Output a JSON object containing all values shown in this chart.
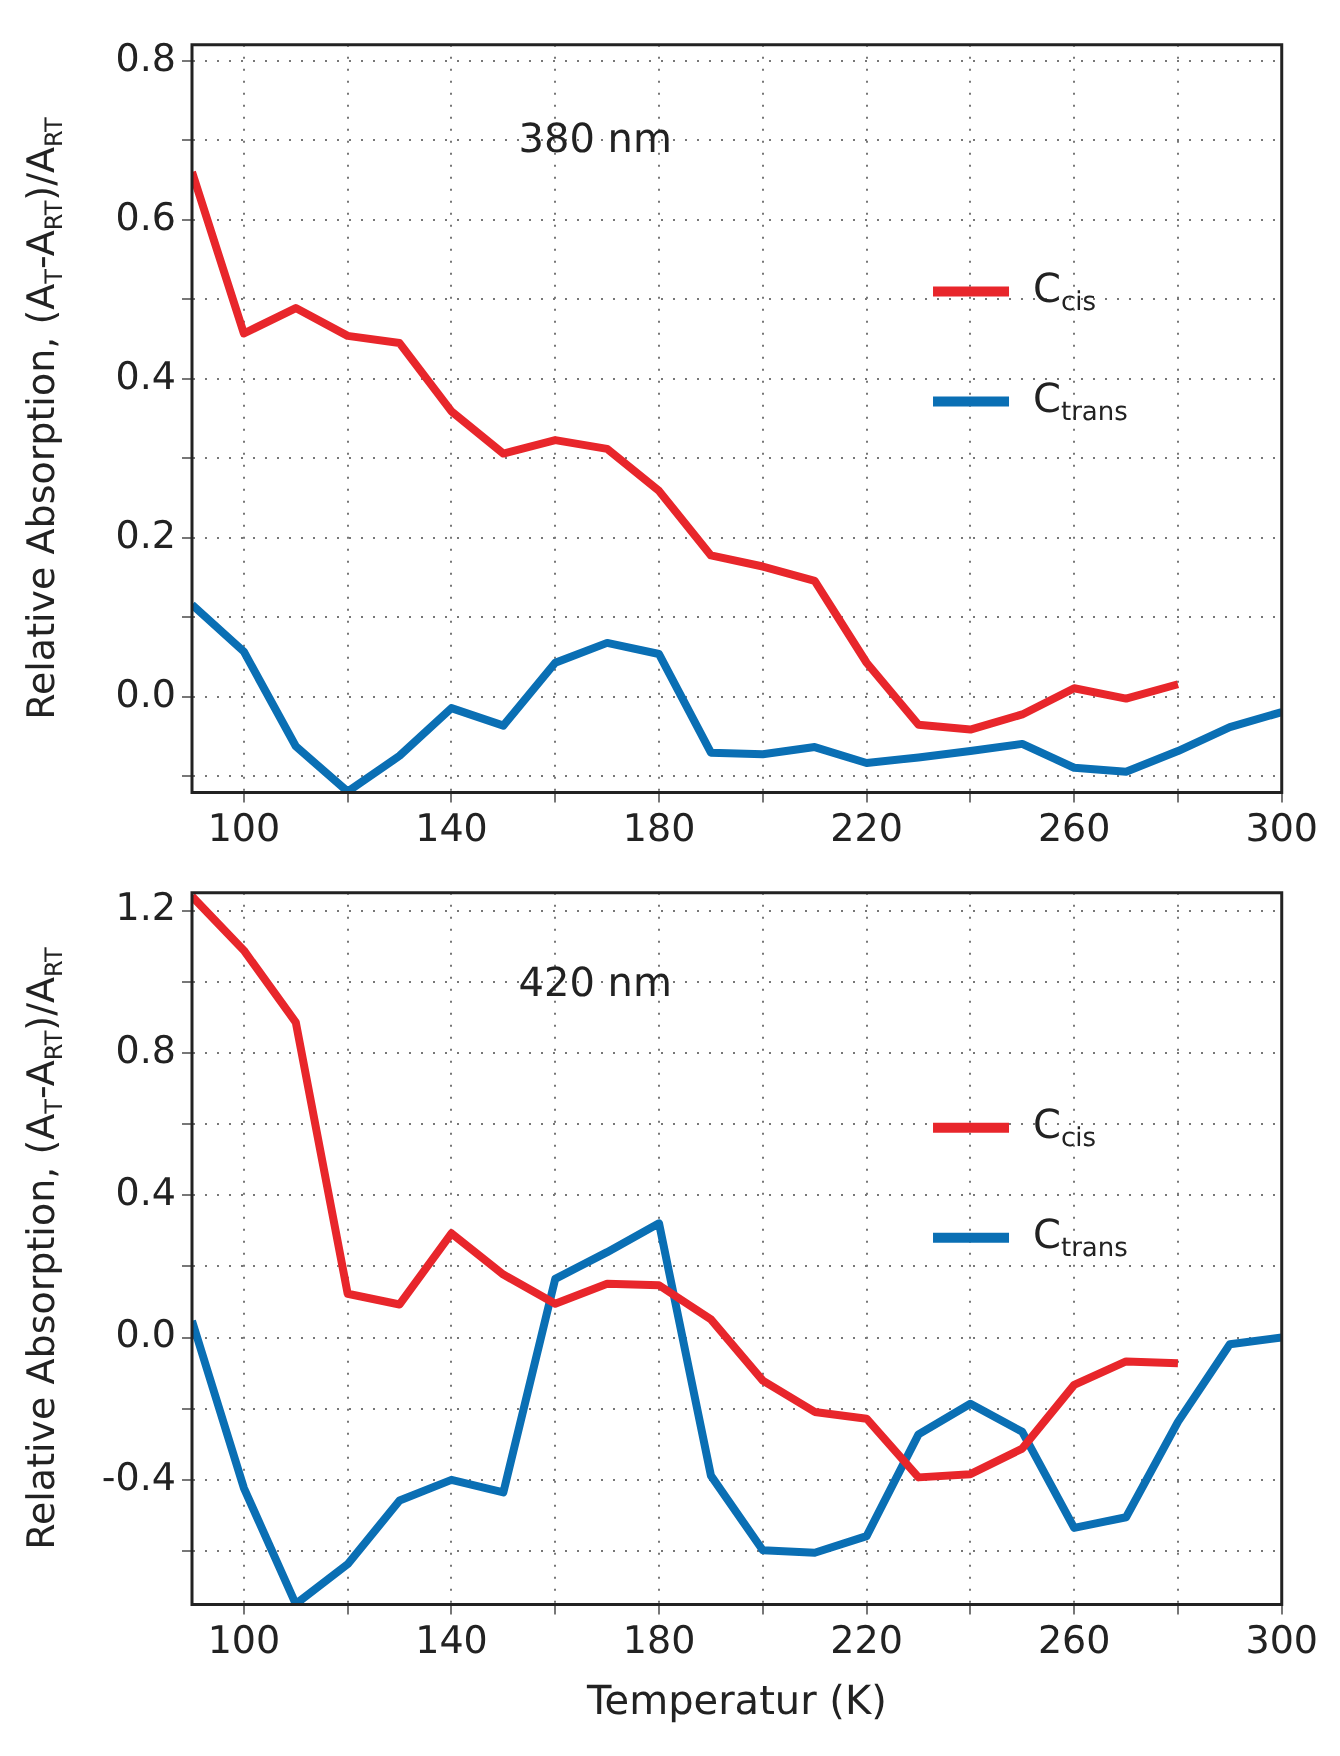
{
  "chart_data": [
    {
      "type": "line",
      "ylabel": "Relative Absorption, (A$_{T}$-A$_{RT}$)/A$_{RT}$",
      "annotations": [
        "380 nm"
      ],
      "x": [
        90,
        100,
        110,
        120,
        130,
        140,
        150,
        160,
        170,
        180,
        190,
        200,
        210,
        220,
        230,
        240,
        250,
        260,
        270,
        280,
        290,
        300
      ],
      "xlim": [
        90,
        300
      ],
      "xticks": [
        100,
        {
          "value": 120,
          "label": null
        },
        140,
        {
          "value": 160,
          "label": null
        },
        180,
        {
          "value": 200,
          "label": null
        },
        220,
        {
          "value": 240,
          "label": null
        },
        260,
        {
          "value": 280,
          "label": null
        },
        300
      ],
      "ylim": [
        -0.12,
        0.82
      ],
      "yticks": [
        {
          "value": -0.1,
          "label": null
        },
        {
          "value": 0,
          "label": "0.0"
        },
        {
          "value": 0.1,
          "label": null
        },
        0.2,
        {
          "value": 0.3,
          "label": null
        },
        0.4,
        {
          "value": 0.5,
          "label": null
        },
        0.6,
        {
          "value": 0.7,
          "label": null
        },
        0.8
      ],
      "grid": true,
      "legend": "right",
      "line_style": "solid",
      "marker": "none",
      "series": [
        {
          "name": "C$_{cis}$",
          "color": "#e8262b",
          "values": [
            0.66,
            0.457,
            0.489,
            0.454,
            0.445,
            0.359,
            0.306,
            0.323,
            0.312,
            0.259,
            0.178,
            0.164,
            0.146,
            0.043,
            -0.035,
            -0.041,
            -0.022,
            0.011,
            -0.002,
            0.016,
            null,
            null
          ]
        },
        {
          "name": "C$_{trans}$",
          "color": "#0a6fb4",
          "values": [
            0.116,
            0.057,
            -0.062,
            -0.119,
            -0.074,
            -0.014,
            -0.036,
            0.043,
            0.068,
            0.054,
            -0.07,
            -0.072,
            -0.063,
            -0.083,
            -0.076,
            -0.068,
            -0.059,
            -0.089,
            -0.094,
            -0.068,
            -0.038,
            -0.019
          ]
        }
      ]
    },
    {
      "type": "line",
      "xlabel": "Temperatur (K)",
      "ylabel": "Relative Absorption, (A$_{T}$-A$_{RT}$)/A$_{RT}$",
      "annotations": [
        "420 nm"
      ],
      "x": [
        90,
        100,
        110,
        120,
        130,
        140,
        150,
        160,
        170,
        180,
        190,
        200,
        210,
        220,
        230,
        240,
        250,
        260,
        270,
        280,
        290,
        300
      ],
      "xlim": [
        90,
        300
      ],
      "xticks": [
        100,
        {
          "value": 120,
          "label": null
        },
        140,
        {
          "value": 160,
          "label": null
        },
        180,
        {
          "value": 200,
          "label": null
        },
        220,
        {
          "value": 240,
          "label": null
        },
        260,
        {
          "value": 280,
          "label": null
        },
        300
      ],
      "ylim": [
        -0.75,
        1.25
      ],
      "yticks": [
        {
          "value": -0.6,
          "label": null
        },
        -0.4,
        {
          "value": -0.2,
          "label": null
        },
        {
          "value": 0,
          "label": "0.0"
        },
        {
          "value": 0.2,
          "label": null
        },
        0.4,
        {
          "value": 0.6,
          "label": null
        },
        0.8,
        {
          "value": 1.0,
          "label": null
        },
        1.2
      ],
      "grid": true,
      "legend": "right",
      "line_style": "solid",
      "marker": "none",
      "series": [
        {
          "name": "C$_{cis}$",
          "color": "#e8262b",
          "values": [
            1.24,
            1.088,
            0.886,
            0.123,
            0.093,
            0.293,
            0.177,
            0.095,
            0.151,
            0.147,
            0.051,
            -0.121,
            -0.209,
            -0.228,
            -0.393,
            -0.384,
            -0.312,
            -0.133,
            -0.067,
            -0.072,
            null,
            null
          ]
        },
        {
          "name": "C$_{trans}$",
          "color": "#0a6fb4",
          "values": [
            0.047,
            -0.423,
            -0.749,
            -0.637,
            -0.458,
            -0.4,
            -0.435,
            0.165,
            0.24,
            0.321,
            -0.388,
            -0.598,
            -0.605,
            -0.558,
            -0.272,
            -0.186,
            -0.265,
            -0.535,
            -0.505,
            -0.237,
            -0.019,
            0.0
          ]
        }
      ]
    }
  ]
}
